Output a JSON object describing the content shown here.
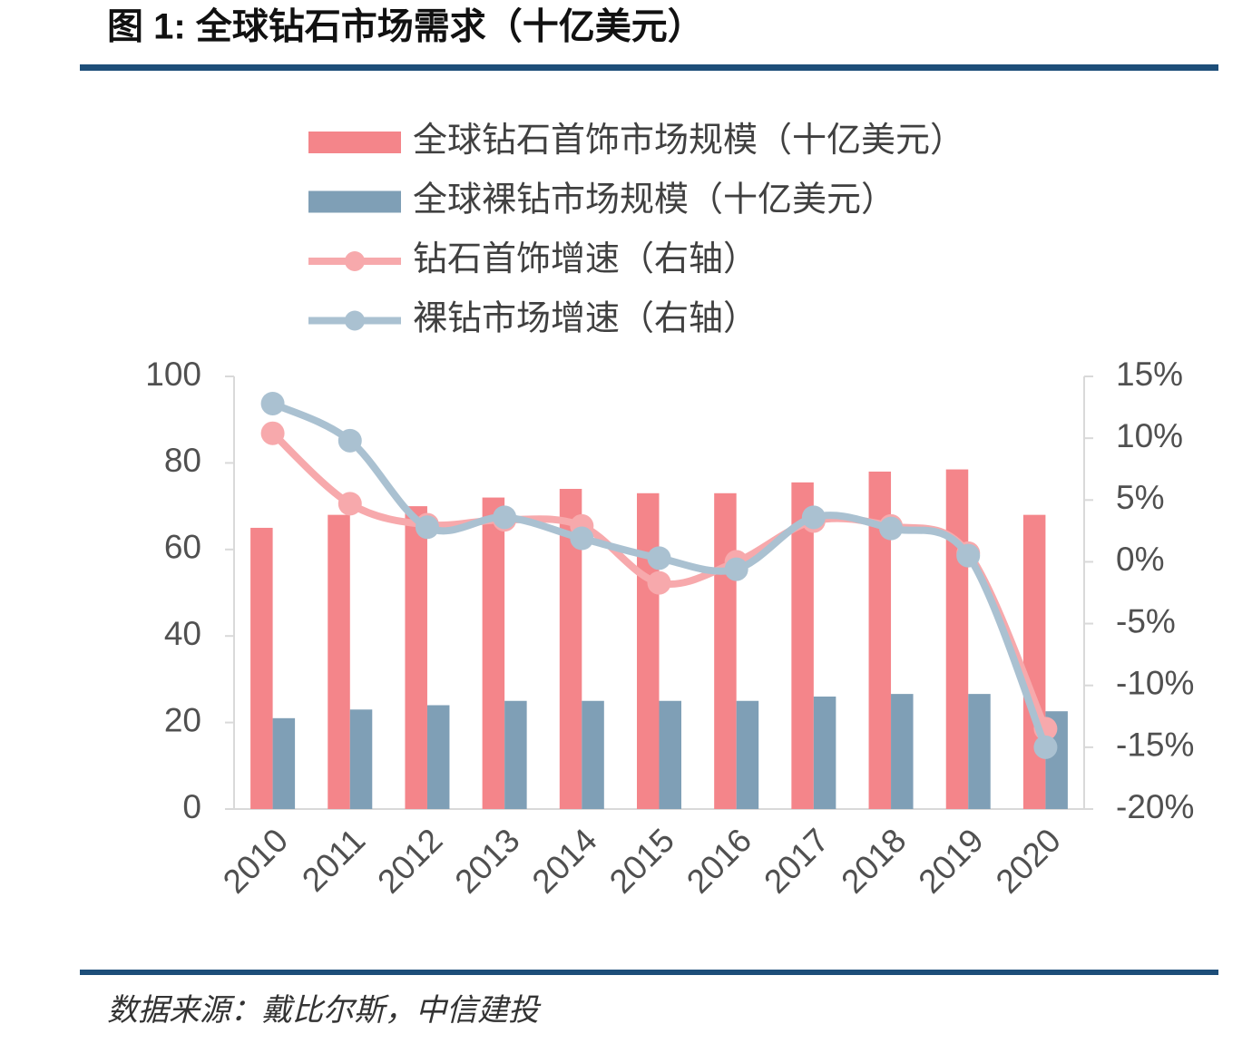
{
  "chart_data": {
    "type": "bar-line",
    "title": "图 1: 全球钻石市场需求（十亿美元）",
    "source": "数据来源：戴比尔斯，中信建投",
    "categories": [
      "2010",
      "2011",
      "2012",
      "2013",
      "2014",
      "2015",
      "2016",
      "2017",
      "2018",
      "2019",
      "2020"
    ],
    "series": [
      {
        "name": "全球钻石首饰市场规模（十亿美元）",
        "type": "bar",
        "color": "#f4858a",
        "values": [
          65,
          68,
          70,
          72,
          74,
          73,
          73,
          75.5,
          78,
          78.5,
          68
        ]
      },
      {
        "name": "全球裸钻市场规模（十亿美元）",
        "type": "bar",
        "color": "#7f9fb6",
        "values": [
          21,
          23,
          24,
          25,
          25,
          25,
          25,
          26,
          26.6,
          26.6,
          22.6
        ]
      },
      {
        "name": "钻石首饰增速（右轴）",
        "type": "line",
        "axis": "y2",
        "color": "#f7a9ac",
        "values": [
          10.4,
          4.7,
          3.0,
          3.4,
          2.9,
          -1.7,
          0,
          3.3,
          2.9,
          0.7,
          -13.5
        ]
      },
      {
        "name": "裸钻市场增速（右轴）",
        "type": "line",
        "axis": "y2",
        "color": "#aac1d1",
        "values": [
          12.8,
          9.8,
          2.8,
          3.6,
          1.9,
          0.3,
          -0.6,
          3.6,
          2.7,
          0.5,
          -15
        ]
      }
    ],
    "ylim": [
      0,
      100
    ],
    "yticks": [
      0,
      20,
      40,
      60,
      80,
      100
    ],
    "y2lim": [
      -20,
      15
    ],
    "y2ticks": [
      {
        "value": -20,
        "label": "-20%"
      },
      {
        "value": -15,
        "label": "-15%"
      },
      {
        "value": -10,
        "label": "-10%"
      },
      {
        "value": -5,
        "label": "-5%"
      },
      {
        "value": 0,
        "label": "0%"
      },
      {
        "value": 5,
        "label": "5%"
      },
      {
        "value": 10,
        "label": "10%"
      },
      {
        "value": 15,
        "label": "15%"
      }
    ]
  }
}
